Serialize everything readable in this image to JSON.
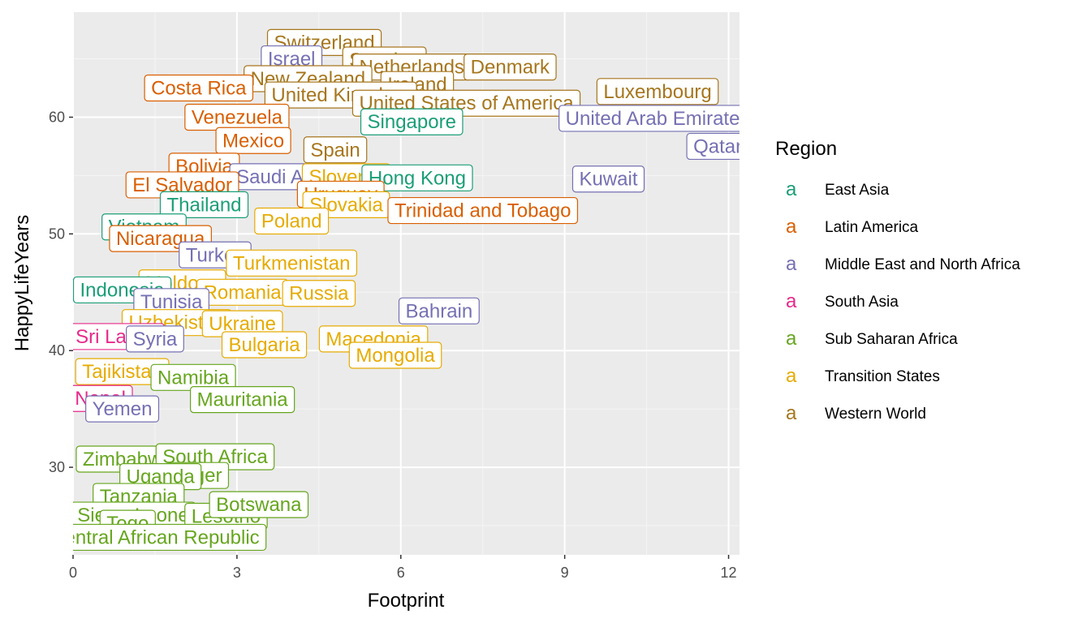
{
  "chart_data": {
    "type": "scatter",
    "xlabel": "Footprint",
    "ylabel": "HappyLifeYears",
    "xlim": [
      0,
      12.2
    ],
    "ylim": [
      22.5,
      69
    ],
    "xticks": [
      0,
      3,
      6,
      9,
      12
    ],
    "yticks": [
      30,
      40,
      50,
      60
    ],
    "grid": true,
    "legend": {
      "title": "Region",
      "position": "right",
      "entries": [
        {
          "name": "East Asia",
          "color": "#1b9e77"
        },
        {
          "name": "Latin America",
          "color": "#d95f02"
        },
        {
          "name": "Middle East and North Africa",
          "color": "#7570b3"
        },
        {
          "name": "South Asia",
          "color": "#e7298a"
        },
        {
          "name": "Sub Saharan Africa",
          "color": "#66a61e"
        },
        {
          "name": "Transition States",
          "color": "#e6ab02"
        },
        {
          "name": "Western World",
          "color": "#a6761d"
        }
      ]
    },
    "points": [
      {
        "label": "Switzerland",
        "x": 4.6,
        "y": 66.4,
        "region": "Western World"
      },
      {
        "label": "Sweden",
        "x": 5.7,
        "y": 64.9,
        "region": "Western World"
      },
      {
        "label": "Netherlands",
        "x": 6.2,
        "y": 64.3,
        "region": "Western World"
      },
      {
        "label": "Denmark",
        "x": 8.0,
        "y": 64.3,
        "region": "Western World"
      },
      {
        "label": "Israel",
        "x": 4.0,
        "y": 65.0,
        "region": "Middle East and North Africa"
      },
      {
        "label": "New Zealand",
        "x": 4.3,
        "y": 63.3,
        "region": "Western World"
      },
      {
        "label": "Ireland",
        "x": 6.3,
        "y": 62.8,
        "region": "Western World"
      },
      {
        "label": "Luxembourg",
        "x": 10.7,
        "y": 62.2,
        "region": "Western World"
      },
      {
        "label": "Costa Rica",
        "x": 2.3,
        "y": 62.5,
        "region": "Latin America"
      },
      {
        "label": "United Kingdom",
        "x": 4.9,
        "y": 61.9,
        "region": "Western World"
      },
      {
        "label": "United States of America",
        "x": 7.2,
        "y": 61.2,
        "region": "Western World"
      },
      {
        "label": "Venezuela",
        "x": 3.0,
        "y": 60.0,
        "region": "Latin America"
      },
      {
        "label": "Singapore",
        "x": 6.2,
        "y": 59.6,
        "region": "East Asia"
      },
      {
        "label": "United Arab Emirates",
        "x": 10.7,
        "y": 59.9,
        "region": "Middle East and North Africa"
      },
      {
        "label": "Qatar",
        "x": 11.8,
        "y": 57.5,
        "region": "Middle East and North Africa"
      },
      {
        "label": "Mexico",
        "x": 3.3,
        "y": 58.0,
        "region": "Latin America"
      },
      {
        "label": "Spain",
        "x": 4.8,
        "y": 57.2,
        "region": "Western World"
      },
      {
        "label": "Bolivia",
        "x": 2.4,
        "y": 55.8,
        "region": "Latin America"
      },
      {
        "label": "Saudi Arabia",
        "x": 4.0,
        "y": 54.9,
        "region": "Middle East and North Africa"
      },
      {
        "label": "Slovenia",
        "x": 5.0,
        "y": 54.9,
        "region": "Transition States"
      },
      {
        "label": "Hong Kong",
        "x": 6.3,
        "y": 54.8,
        "region": "East Asia"
      },
      {
        "label": "Kuwait",
        "x": 9.8,
        "y": 54.7,
        "region": "Middle East and North Africa"
      },
      {
        "label": "El Salvador",
        "x": 2.0,
        "y": 54.2,
        "region": "Latin America"
      },
      {
        "label": "Uruguay",
        "x": 4.9,
        "y": 53.4,
        "region": "Latin America"
      },
      {
        "label": "Thailand",
        "x": 2.4,
        "y": 52.5,
        "region": "East Asia"
      },
      {
        "label": "Slovakia",
        "x": 5.0,
        "y": 52.5,
        "region": "Transition States"
      },
      {
        "label": "Trinidad and Tobago",
        "x": 7.5,
        "y": 52.0,
        "region": "Latin America"
      },
      {
        "label": "Poland",
        "x": 4.0,
        "y": 51.1,
        "region": "Transition States"
      },
      {
        "label": "Vietnam",
        "x": 1.3,
        "y": 50.6,
        "region": "East Asia"
      },
      {
        "label": "Nicaragua",
        "x": 1.6,
        "y": 49.6,
        "region": "Latin America"
      },
      {
        "label": "Turkey",
        "x": 2.6,
        "y": 48.2,
        "region": "Middle East and North Africa"
      },
      {
        "label": "Turkmenistan",
        "x": 4.0,
        "y": 47.5,
        "region": "Transition States"
      },
      {
        "label": "Moldova",
        "x": 2.0,
        "y": 45.8,
        "region": "Transition States"
      },
      {
        "label": "Indonesia",
        "x": 0.9,
        "y": 45.2,
        "region": "East Asia"
      },
      {
        "label": "Romania",
        "x": 3.1,
        "y": 45.0,
        "region": "Transition States"
      },
      {
        "label": "Russia",
        "x": 4.5,
        "y": 44.9,
        "region": "Transition States"
      },
      {
        "label": "Tunisia",
        "x": 1.8,
        "y": 44.2,
        "region": "Middle East and North Africa"
      },
      {
        "label": "Bahrain",
        "x": 6.7,
        "y": 43.4,
        "region": "Middle East and North Africa"
      },
      {
        "label": "Uzbekistan",
        "x": 1.9,
        "y": 42.4,
        "region": "Transition States"
      },
      {
        "label": "Ukraine",
        "x": 3.1,
        "y": 42.3,
        "region": "Transition States"
      },
      {
        "label": "Sri Lanka",
        "x": 0.8,
        "y": 41.2,
        "region": "South Asia"
      },
      {
        "label": "Syria",
        "x": 1.5,
        "y": 41.0,
        "region": "Middle East and North Africa"
      },
      {
        "label": "Bulgaria",
        "x": 3.5,
        "y": 40.5,
        "region": "Transition States"
      },
      {
        "label": "Macedonia",
        "x": 5.5,
        "y": 41.0,
        "region": "Transition States"
      },
      {
        "label": "Mongolia",
        "x": 5.9,
        "y": 39.6,
        "region": "Transition States"
      },
      {
        "label": "Tajikistan",
        "x": 0.9,
        "y": 38.2,
        "region": "Transition States"
      },
      {
        "label": "Namibia",
        "x": 2.2,
        "y": 37.7,
        "region": "Sub Saharan Africa"
      },
      {
        "label": "Mauritania",
        "x": 3.1,
        "y": 35.8,
        "region": "Sub Saharan Africa"
      },
      {
        "label": "Nepal",
        "x": 0.5,
        "y": 35.9,
        "region": "South Asia"
      },
      {
        "label": "Yemen",
        "x": 0.9,
        "y": 35.0,
        "region": "Middle East and North Africa"
      },
      {
        "label": "Zimbabwe",
        "x": 1.0,
        "y": 30.7,
        "region": "Sub Saharan Africa"
      },
      {
        "label": "South Africa",
        "x": 2.6,
        "y": 30.9,
        "region": "Sub Saharan Africa"
      },
      {
        "label": "Niger",
        "x": 2.3,
        "y": 29.3,
        "region": "Sub Saharan Africa"
      },
      {
        "label": "Uganda",
        "x": 1.6,
        "y": 29.2,
        "region": "Sub Saharan Africa"
      },
      {
        "label": "Tanzania",
        "x": 1.2,
        "y": 27.5,
        "region": "Sub Saharan Africa"
      },
      {
        "label": "Sierra Leone",
        "x": 1.1,
        "y": 25.9,
        "region": "Sub Saharan Africa"
      },
      {
        "label": "Lesotho",
        "x": 2.8,
        "y": 25.8,
        "region": "Sub Saharan Africa"
      },
      {
        "label": "Botswana",
        "x": 3.4,
        "y": 26.8,
        "region": "Sub Saharan Africa"
      },
      {
        "label": "Togo",
        "x": 1.0,
        "y": 25.2,
        "region": "Sub Saharan Africa"
      },
      {
        "label": "Central African Republic",
        "x": 1.5,
        "y": 24.0,
        "region": "Sub Saharan Africa"
      }
    ]
  }
}
